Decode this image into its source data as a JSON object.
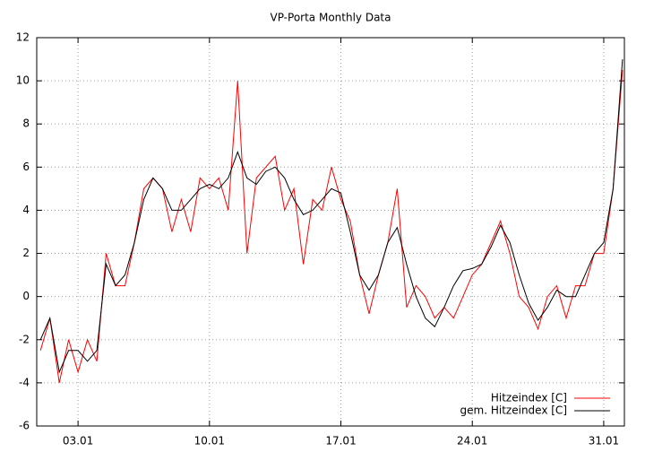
{
  "chart_data": {
    "type": "line",
    "title": "VP-Porta Monthly Data",
    "x": [
      1,
      1.5,
      2,
      2.5,
      3,
      3.5,
      4,
      4.5,
      5,
      5.5,
      6,
      6.5,
      7,
      7.5,
      8,
      8.5,
      9,
      9.5,
      10,
      10.5,
      11,
      11.5,
      12,
      12.5,
      13,
      13.5,
      14,
      14.5,
      15,
      15.5,
      16,
      16.5,
      17,
      17.5,
      18,
      18.5,
      19,
      19.5,
      20,
      20.5,
      21,
      21.5,
      22,
      22.5,
      23,
      23.5,
      24,
      24.5,
      25,
      25.5,
      26,
      26.5,
      27,
      27.5,
      28,
      28.5,
      29,
      29.5,
      30,
      30.5,
      31,
      31.5,
      32
    ],
    "series": [
      {
        "name": "Hitzeindex [C]",
        "color": "#ff0000",
        "values": [
          -2.5,
          -1,
          -4,
          -2,
          -3.5,
          -2,
          -3,
          2,
          0.5,
          0.5,
          2.5,
          5,
          5.5,
          5,
          3,
          4.5,
          3,
          5.5,
          5,
          5.5,
          4,
          10,
          2,
          5.5,
          6,
          6.5,
          4,
          5,
          1.5,
          4.5,
          4,
          6,
          4.5,
          3.5,
          1,
          -0.8,
          1,
          2.5,
          5,
          -0.5,
          0.5,
          0,
          -1,
          -0.5,
          -1,
          0,
          1,
          1.5,
          2.5,
          3.5,
          2,
          0,
          -0.5,
          -1.5,
          0,
          0.5,
          -1,
          0.5,
          0.5,
          2,
          2,
          5,
          10.5
        ]
      },
      {
        "name": "gem. Hitzeindex [C]",
        "color": "#000000",
        "values": [
          -2,
          -1,
          -3.5,
          -2.5,
          -2.5,
          -3,
          -2.5,
          1.5,
          0.5,
          1,
          2.5,
          4.5,
          5.5,
          5,
          4,
          4,
          4.5,
          5,
          5.2,
          5,
          5.5,
          6.7,
          5.5,
          5.2,
          5.8,
          6,
          5.5,
          4.5,
          3.8,
          4,
          4.5,
          5,
          4.8,
          3,
          1,
          0.3,
          1,
          2.5,
          3.2,
          1.5,
          0,
          -1,
          -1.4,
          -0.5,
          0.5,
          1.2,
          1.3,
          1.5,
          2.3,
          3.3,
          2.5,
          1,
          -0.3,
          -1.1,
          -0.5,
          0.3,
          0,
          0,
          1,
          2,
          2.5,
          5,
          11
        ]
      }
    ],
    "xlim": [
      0.8,
      32.1
    ],
    "ylim": [
      -6,
      12
    ],
    "xticks": [
      {
        "value": 3,
        "label": "03.01"
      },
      {
        "value": 10,
        "label": "10.01"
      },
      {
        "value": 17,
        "label": "17.01"
      },
      {
        "value": 24,
        "label": "24.01"
      },
      {
        "value": 31,
        "label": "31.01"
      }
    ],
    "yticks": [
      -6,
      -4,
      -2,
      0,
      2,
      4,
      6,
      8,
      10,
      12
    ],
    "grid": true,
    "legend": "bottom-right"
  }
}
